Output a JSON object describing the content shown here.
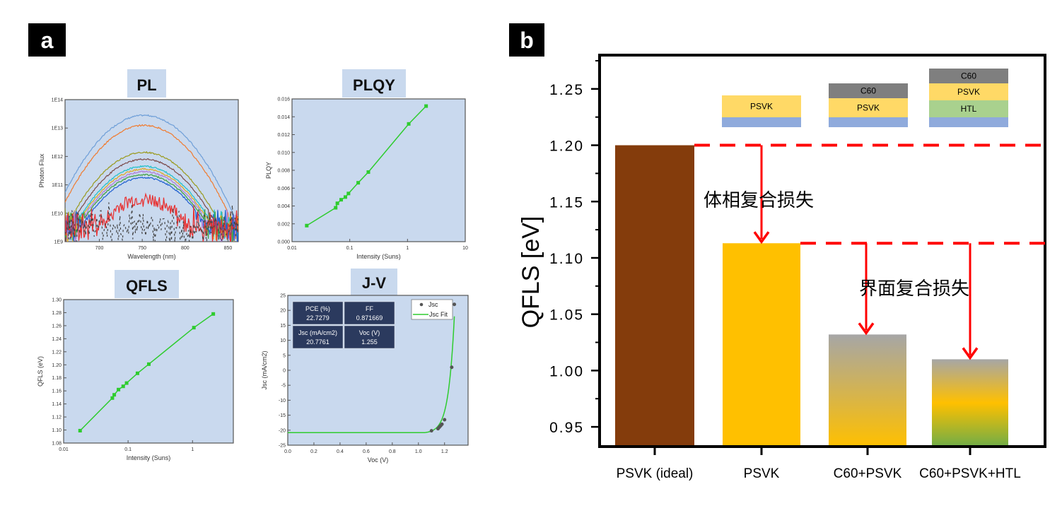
{
  "panels": {
    "a_label": "a",
    "b_label": "b"
  },
  "chart_data": [
    {
      "id": "pl",
      "type": "line",
      "title": "PL",
      "xlabel": "Wavelength (nm)",
      "ylabel": "Photon Flux",
      "yscale": "log",
      "xlim": [
        660,
        862
      ],
      "ylim": [
        1000000000.0,
        100000000000000.0
      ],
      "xticks": [
        "700",
        "750",
        "800",
        "850"
      ],
      "yticks": [
        "1E9",
        "1E10",
        "1E11",
        "1E12",
        "1E13",
        "1E14"
      ],
      "peak_wavelength": 752,
      "series": [
        {
          "peak": 28000000000000.0,
          "color": "#6f9fd8"
        },
        {
          "peak": 12500000000000.0,
          "color": "#f07b2f"
        },
        {
          "peak": 1400000000000.0,
          "color": "#9a9a1e"
        },
        {
          "peak": 800000000000.0,
          "color": "#7b4a4a"
        },
        {
          "peak": 450000000000.0,
          "color": "#20c0c8"
        },
        {
          "peak": 360000000000.0,
          "color": "#e0a820"
        },
        {
          "peak": 290000000000.0,
          "color": "#b07ad8"
        },
        {
          "peak": 230000000000.0,
          "color": "#40a040"
        },
        {
          "peak": 180000000000.0,
          "color": "#2060d0"
        },
        {
          "peak": 30000000000.0,
          "color": "#e83030"
        },
        {
          "peak": 4000000000.0,
          "color": "#444444",
          "dashed": true
        }
      ]
    },
    {
      "id": "plqy",
      "type": "line",
      "title": "PLQY",
      "xlabel": "Intensity (Suns)",
      "ylabel": "PLQY",
      "xscale": "log",
      "xlim": [
        0.01,
        10
      ],
      "ylim": [
        0,
        0.016
      ],
      "xticks": [
        "0.01",
        "0.1",
        "1",
        "10"
      ],
      "yticks": [
        "0.000",
        "0.002",
        "0.004",
        "0.006",
        "0.008",
        "0.010",
        "0.012",
        "0.014",
        "0.016"
      ],
      "color": "#2ecc2e",
      "x": [
        0.018,
        0.057,
        0.061,
        0.071,
        0.084,
        0.095,
        0.14,
        0.21,
        1.05,
        2.1
      ],
      "y": [
        0.0018,
        0.0038,
        0.0043,
        0.0047,
        0.005,
        0.0054,
        0.0066,
        0.0078,
        0.0132,
        0.0152
      ]
    },
    {
      "id": "qfls",
      "type": "line",
      "title": "QFLS",
      "xlabel": "Intensity (Suns)",
      "ylabel": "QFLS (eV)",
      "xscale": "log",
      "xlim": [
        0.01,
        4.3
      ],
      "ylim": [
        1.08,
        1.3
      ],
      "xticks": [
        "0.01",
        "0.1",
        "1"
      ],
      "yticks": [
        "1.08",
        "1.10",
        "1.12",
        "1.14",
        "1.16",
        "1.18",
        "1.20",
        "1.22",
        "1.24",
        "1.26",
        "1.28",
        "1.30"
      ],
      "color": "#2ecc2e",
      "x": [
        0.018,
        0.057,
        0.061,
        0.071,
        0.084,
        0.095,
        0.14,
        0.21,
        1.05,
        2.1
      ],
      "y": [
        1.099,
        1.149,
        1.154,
        1.162,
        1.167,
        1.172,
        1.187,
        1.201,
        1.257,
        1.278
      ]
    },
    {
      "id": "jv",
      "type": "scatter",
      "title": "J-V",
      "xlabel": "Voc (V)",
      "ylabel": "Jsc (mA/cm2)",
      "xlim": [
        0,
        1.38
      ],
      "ylim": [
        -25,
        25
      ],
      "xticks": [
        "0.0",
        "0.2",
        "0.4",
        "0.6",
        "0.8",
        "1.0",
        "1.2"
      ],
      "yticks": [
        "-25",
        "-20",
        "-15",
        "-10",
        "-5",
        "0",
        "5",
        "10",
        "15",
        "20",
        "25"
      ],
      "legend": [
        "Jsc",
        "Jsc Fit"
      ],
      "legend_position": "top-right",
      "points": {
        "x": [
          1.1,
          1.15,
          1.16,
          1.17,
          1.18,
          1.2,
          1.255,
          1.275
        ],
        "y": [
          -20.2,
          -19.5,
          -19.0,
          -18.5,
          -18.0,
          -16.5,
          1.0,
          22.0
        ]
      },
      "fit": {
        "jsc": -20.8,
        "x_end": 1.275,
        "y_end": 18
      },
      "stats": [
        {
          "label": "PCE (%)",
          "value": "22.7279"
        },
        {
          "label": "FF",
          "value": "0.871669"
        },
        {
          "label": "Jsc (mA/cm2)",
          "value": "20.7761"
        },
        {
          "label": "Voc (V)",
          "value": "1.255"
        }
      ],
      "colors": {
        "points": "#555555",
        "fit": "#2ecc2e",
        "stats_box": "#2b3a5e"
      }
    },
    {
      "id": "qfls_bar",
      "type": "bar",
      "ylabel": "QFLS [eV]",
      "ylim": [
        0.9325,
        1.28
      ],
      "yticks": [
        "0.95",
        "1.00",
        "1.05",
        "1.10",
        "1.15",
        "1.20",
        "1.25"
      ],
      "categories": [
        "PSVK (ideal)",
        "PSVK",
        "C60+PSVK",
        "C60+PSVK+HTL"
      ],
      "values": [
        1.2,
        1.113,
        1.032,
        1.01
      ],
      "bar_colors": [
        [
          "#843c0c"
        ],
        [
          "#ffc000"
        ],
        [
          "#a6a6a6",
          "#ffc000"
        ],
        [
          "#a6a6a6",
          "#ffc000",
          "#70ad47"
        ]
      ],
      "reference_lines": [
        1.2,
        1.113
      ],
      "annotations": [
        {
          "text": "体相复合损失",
          "from": 1.2,
          "to": 1.113
        },
        {
          "text": "界面复合损失",
          "from": 1.113,
          "to": [
            1.032,
            1.01
          ]
        }
      ],
      "layer_stacks": [
        [
          {
            "name": "PSVK",
            "color": "#ffd966"
          },
          {
            "name": "",
            "color": "#8faadc"
          }
        ],
        [
          {
            "name": "C60",
            "color": "#7f7f7f"
          },
          {
            "name": "PSVK",
            "color": "#ffd966"
          },
          {
            "name": "",
            "color": "#8faadc"
          }
        ],
        [
          {
            "name": "C60",
            "color": "#7f7f7f"
          },
          {
            "name": "PSVK",
            "color": "#ffd966"
          },
          {
            "name": "HTL",
            "color": "#a9d18e"
          },
          {
            "name": "",
            "color": "#8faadc"
          }
        ]
      ],
      "colors": {
        "annotation": "#ff0000"
      }
    }
  ]
}
